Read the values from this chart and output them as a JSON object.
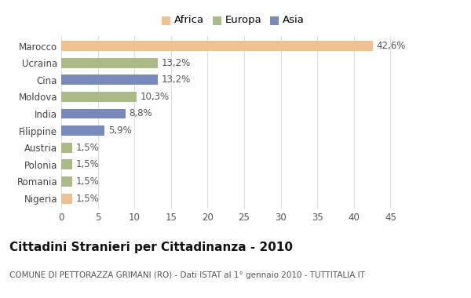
{
  "categories": [
    "Marocco",
    "Ucraina",
    "Cina",
    "Moldova",
    "India",
    "Filippine",
    "Austria",
    "Polonia",
    "Romania",
    "Nigeria"
  ],
  "values": [
    42.6,
    13.2,
    13.2,
    10.3,
    8.8,
    5.9,
    1.5,
    1.5,
    1.5,
    1.5
  ],
  "labels": [
    "42,6%",
    "13,2%",
    "13,2%",
    "10,3%",
    "8,8%",
    "5,9%",
    "1,5%",
    "1,5%",
    "1,5%",
    "1,5%"
  ],
  "colors": [
    "#F0C090",
    "#AABB88",
    "#7788BB",
    "#AABB88",
    "#7788BB",
    "#7788BB",
    "#AABB88",
    "#AABB88",
    "#AABB88",
    "#F0C090"
  ],
  "legend_labels": [
    "Africa",
    "Europa",
    "Asia"
  ],
  "legend_colors": [
    "#F0C090",
    "#AABB88",
    "#7788BB"
  ],
  "title": "Cittadini Stranieri per Cittadinanza - 2010",
  "subtitle": "COMUNE DI PETTORAZZA GRIMANI (RO) - Dati ISTAT al 1° gennaio 2010 - TUTTITALIA.IT",
  "xlim": [
    0,
    47
  ],
  "xticks": [
    0,
    5,
    10,
    15,
    20,
    25,
    30,
    35,
    40,
    45
  ],
  "background_color": "#ffffff",
  "grid_color": "#dddddd",
  "bar_height": 0.6,
  "title_fontsize": 11,
  "subtitle_fontsize": 7.5,
  "tick_fontsize": 8.5,
  "label_fontsize": 8.5,
  "legend_fontsize": 9.5
}
